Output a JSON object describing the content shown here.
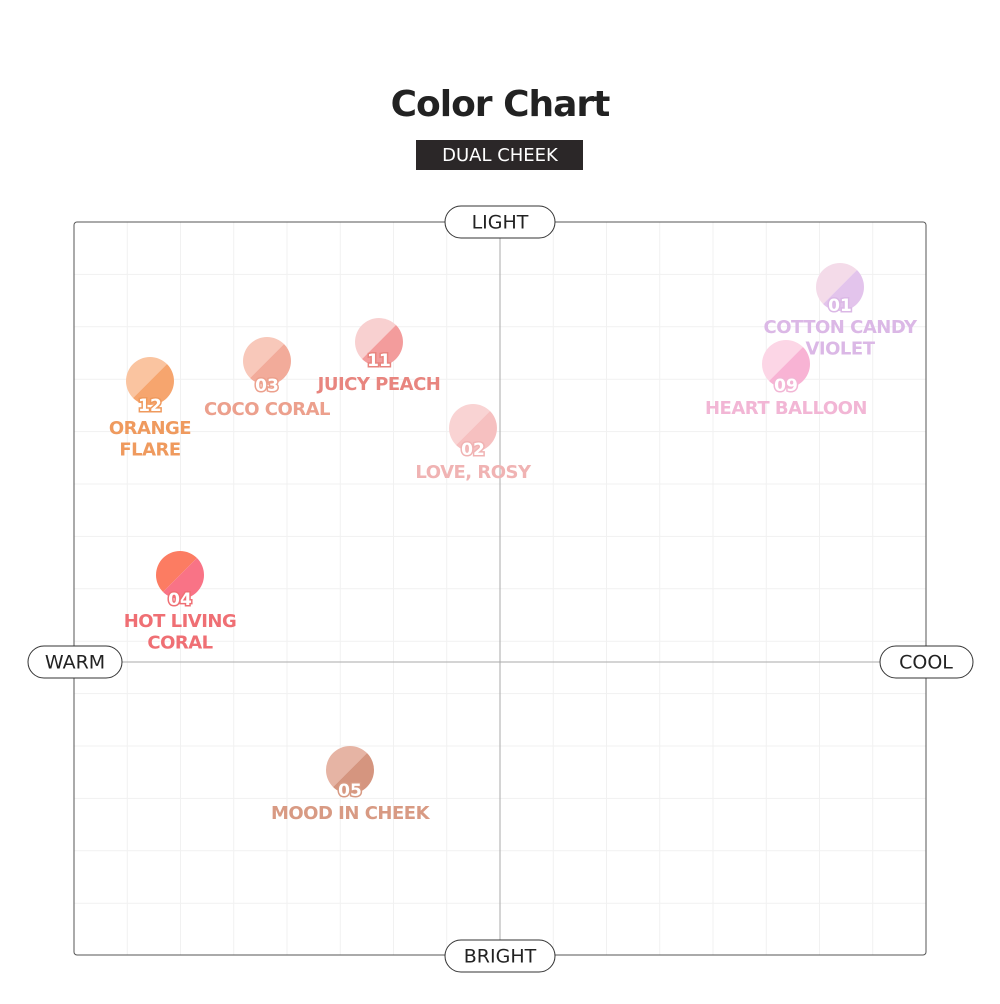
{
  "header": {
    "title": "Color Chart",
    "subtitle": "DUAL CHEEK"
  },
  "axes": {
    "top": "LIGHT",
    "bottom": "BRIGHT",
    "left": "WARM",
    "right": "COOL"
  },
  "items": [
    {
      "number": "01",
      "name": [
        "COTTON CANDY",
        "VIOLET"
      ]
    },
    {
      "number": "09",
      "name": [
        "HEART BALLOON"
      ]
    },
    {
      "number": "12",
      "name": [
        "ORANGE",
        "FLARE"
      ]
    },
    {
      "number": "03",
      "name": [
        "COCO CORAL"
      ]
    },
    {
      "number": "11",
      "name": [
        "JUICY PEACH"
      ]
    },
    {
      "number": "02",
      "name": [
        "LOVE, ROSY"
      ]
    },
    {
      "number": "04",
      "name": [
        "HOT LIVING",
        "CORAL"
      ]
    },
    {
      "number": "05",
      "name": [
        "MOOD IN CHEEK"
      ]
    }
  ]
}
